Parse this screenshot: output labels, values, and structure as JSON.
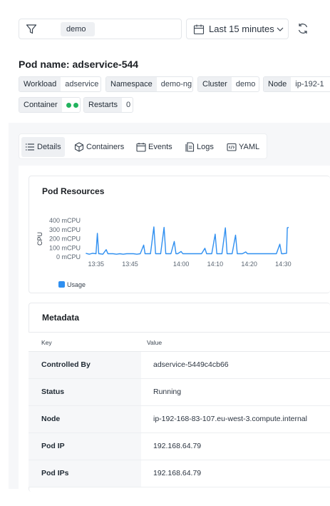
{
  "filter": {
    "chip": "demo"
  },
  "time_range": {
    "label": "Last 15 minutes"
  },
  "pod": {
    "title": "Pod name: adservice-544"
  },
  "tags": [
    {
      "key": "Workload",
      "value": "adservice"
    },
    {
      "key": "Namespace",
      "value": "demo-ng"
    },
    {
      "key": "Cluster",
      "value": "demo"
    },
    {
      "key": "Node",
      "value": "ip-192-1"
    },
    {
      "key": "Container",
      "value": ""
    },
    {
      "key": "Restarts",
      "value": "0"
    }
  ],
  "tabs": [
    {
      "label": "Details",
      "icon": "list-icon"
    },
    {
      "label": "Containers",
      "icon": "cube-icon"
    },
    {
      "label": "Events",
      "icon": "calendar-icon"
    },
    {
      "label": "Logs",
      "icon": "document-icon"
    },
    {
      "label": "YAML",
      "icon": "code-icon"
    }
  ],
  "resources": {
    "title": "Pod Resources"
  },
  "colors": {
    "series": "#2f8ff0",
    "status_ok": "#22b35e"
  },
  "chart_data": {
    "type": "line",
    "title": "",
    "ylabel": "CPU",
    "ylim": [
      0,
      400
    ],
    "y_ticks": [
      "0 mCPU",
      "100 mCPU",
      "200 mCPU",
      "300 mCPU",
      "400 mCPU"
    ],
    "x_ticks": [
      "13:35",
      "13:45",
      "14:00",
      "14:10",
      "14:20",
      "14:30"
    ],
    "legend_position": "bottom-left",
    "series": [
      {
        "name": "Usage",
        "points": [
          [
            "13:32",
            40
          ],
          [
            "13:33",
            30
          ],
          [
            "13:34",
            40
          ],
          [
            "13:35",
            35
          ],
          [
            "13:35.4",
            260
          ],
          [
            "13:35.8",
            35
          ],
          [
            "13:36",
            35
          ],
          [
            "13:37",
            30
          ],
          [
            "13:38",
            80
          ],
          [
            "13:38.5",
            35
          ],
          [
            "13:39",
            35
          ],
          [
            "13:40",
            35
          ],
          [
            "13:41",
            30
          ],
          [
            "13:42",
            35
          ],
          [
            "13:43",
            30
          ],
          [
            "13:44",
            35
          ],
          [
            "13:45",
            35
          ],
          [
            "13:46",
            35
          ],
          [
            "13:47",
            30
          ],
          [
            "13:48",
            35
          ],
          [
            "13:49",
            130
          ],
          [
            "13:49.4",
            35
          ],
          [
            "13:50",
            35
          ],
          [
            "13:51",
            35
          ],
          [
            "13:52",
            330
          ],
          [
            "13:52.5",
            35
          ],
          [
            "13:53",
            35
          ],
          [
            "13:54",
            35
          ],
          [
            "13:55",
            325
          ],
          [
            "13:55.5",
            35
          ],
          [
            "13:56",
            35
          ],
          [
            "13:57",
            35
          ],
          [
            "13:58",
            170
          ],
          [
            "13:58.5",
            35
          ],
          [
            "13:59",
            35
          ],
          [
            "14:00",
            60
          ],
          [
            "14:00.5",
            35
          ],
          [
            "14:01",
            35
          ],
          [
            "14:02",
            35
          ],
          [
            "14:03",
            35
          ],
          [
            "14:04",
            35
          ],
          [
            "14:05",
            35
          ],
          [
            "14:06",
            35
          ],
          [
            "14:07",
            95
          ],
          [
            "14:07.5",
            35
          ],
          [
            "14:08",
            35
          ],
          [
            "14:09",
            35
          ],
          [
            "14:10",
            250
          ],
          [
            "14:10.5",
            35
          ],
          [
            "14:11",
            35
          ],
          [
            "14:12",
            35
          ],
          [
            "14:13",
            320
          ],
          [
            "14:13.5",
            35
          ],
          [
            "14:14",
            35
          ],
          [
            "14:15",
            35
          ],
          [
            "14:16",
            240
          ],
          [
            "14:16.5",
            35
          ],
          [
            "14:17",
            35
          ],
          [
            "14:18",
            35
          ],
          [
            "14:19",
            55
          ],
          [
            "14:19.5",
            35
          ],
          [
            "14:20",
            35
          ],
          [
            "14:21",
            35
          ],
          [
            "14:22",
            35
          ],
          [
            "14:23",
            35
          ],
          [
            "14:24",
            35
          ],
          [
            "14:25",
            35
          ],
          [
            "14:26",
            35
          ],
          [
            "14:27",
            35
          ],
          [
            "14:28",
            35
          ],
          [
            "14:29",
            140
          ],
          [
            "14:29.5",
            35
          ],
          [
            "14:30",
            35
          ],
          [
            "14:31",
            40
          ],
          [
            "14:31.2",
            320
          ],
          [
            "14:31.6",
            325
          ]
        ]
      }
    ]
  },
  "metadata": {
    "title": "Metadata",
    "col_key": "Key",
    "col_value": "Value",
    "rows": [
      {
        "key": "Controlled By",
        "value": "adservice-5449c4cb66"
      },
      {
        "key": "Status",
        "value": "Running"
      },
      {
        "key": "Node",
        "value": "ip-192-168-83-107.eu-west-3.compute.internal"
      },
      {
        "key": "Pod IP",
        "value": "192.168.64.79"
      },
      {
        "key": "Pod IPs",
        "value": "192.168.64.79"
      }
    ]
  }
}
